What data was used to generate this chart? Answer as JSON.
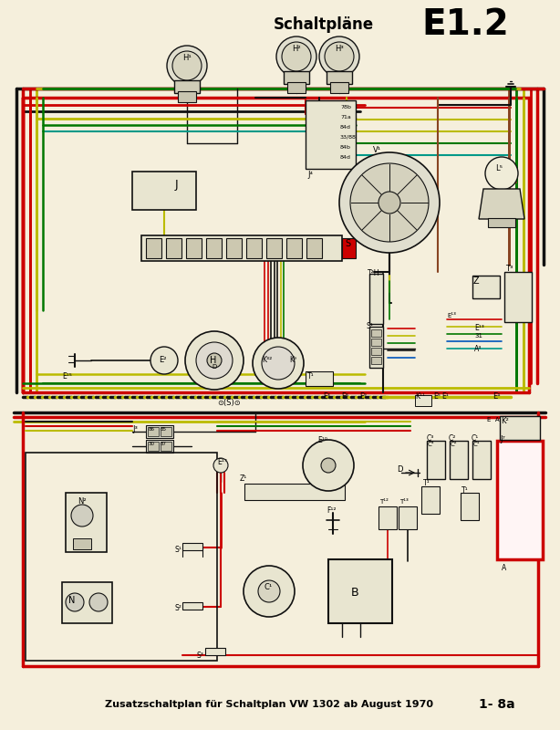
{
  "title": "Schaltpläne",
  "title_code": "E1.2",
  "subtitle": "Zusatzschaltplan für Schaltplan VW 1302 ab August 1970",
  "page_ref": "1- 8a",
  "bg_color": "#f5efdc",
  "red": "#cc0000",
  "black": "#111111",
  "yellow": "#bbbb00",
  "green": "#007700",
  "blue": "#0055bb",
  "brown": "#884422",
  "teal": "#009988",
  "fig_width": 6.14,
  "fig_height": 8.0,
  "dpi": 100
}
